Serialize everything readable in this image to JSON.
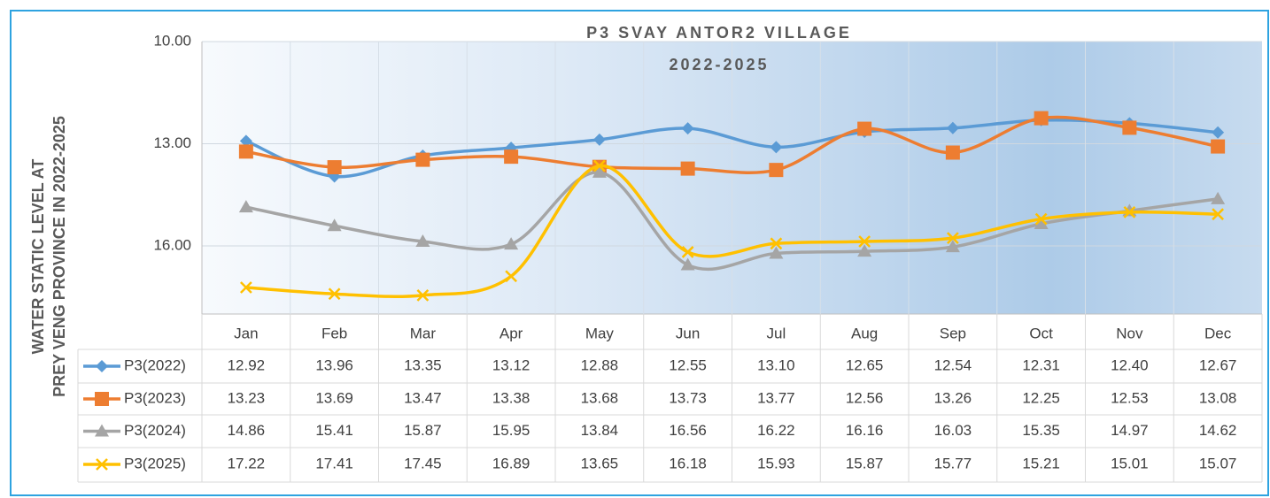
{
  "chart_data": {
    "type": "line",
    "title": [
      "P3 SVAY ANTOR2 VILLAGE",
      "2022-2025"
    ],
    "ylabel": [
      "WATER STATIC LEVEL AT",
      "PREY VENG PROVINCE IN 2022-2025"
    ],
    "categories": [
      "Jan",
      "Feb",
      "Mar",
      "Apr",
      "May",
      "Jun",
      "Jul",
      "Aug",
      "Sep",
      "Oct",
      "Nov",
      "Dec"
    ],
    "ylim": [
      10,
      18
    ],
    "y_reversed": true,
    "yticks": [
      {
        "value": 10,
        "label": "10.00"
      },
      {
        "value": 13,
        "label": "13.00"
      },
      {
        "value": 16,
        "label": "16.00"
      }
    ],
    "grid": true,
    "smooth": true,
    "series": [
      {
        "name": "P3(2022)",
        "color": "#5b9bd5",
        "marker": "diamond",
        "values": [
          12.92,
          13.96,
          13.35,
          13.12,
          12.88,
          12.55,
          13.1,
          12.65,
          12.54,
          12.31,
          12.4,
          12.67
        ],
        "value_labels": [
          "12.92",
          "13.96",
          "13.35",
          "13.12",
          "12.88",
          "12.55",
          "13.10",
          "12.65",
          "12.54",
          "12.31",
          "12.40",
          "12.67"
        ]
      },
      {
        "name": "P3(2023)",
        "color": "#ed7d31",
        "marker": "square",
        "values": [
          13.23,
          13.69,
          13.47,
          13.38,
          13.68,
          13.73,
          13.77,
          12.56,
          13.26,
          12.25,
          12.53,
          13.08
        ],
        "value_labels": [
          "13.23",
          "13.69",
          "13.47",
          "13.38",
          "13.68",
          "13.73",
          "13.77",
          "12.56",
          "13.26",
          "12.25",
          "12.53",
          "13.08"
        ]
      },
      {
        "name": "P3(2024)",
        "color": "#a5a5a5",
        "marker": "triangle",
        "values": [
          14.86,
          15.41,
          15.87,
          15.95,
          13.84,
          16.56,
          16.22,
          16.16,
          16.03,
          15.35,
          14.97,
          14.62
        ],
        "value_labels": [
          "14.86",
          "15.41",
          "15.87",
          "15.95",
          "13.84",
          "16.56",
          "16.22",
          "16.16",
          "16.03",
          "15.35",
          "14.97",
          "14.62"
        ]
      },
      {
        "name": "P3(2025)",
        "color": "#ffc000",
        "marker": "x",
        "values": [
          17.22,
          17.41,
          17.45,
          16.89,
          13.65,
          16.18,
          15.93,
          15.87,
          15.77,
          15.21,
          15.01,
          15.07
        ],
        "value_labels": [
          "17.22",
          "17.41",
          "17.45",
          "16.89",
          "13.65",
          "16.18",
          "15.93",
          "15.87",
          "15.77",
          "15.21",
          "15.01",
          "15.07"
        ]
      }
    ]
  }
}
